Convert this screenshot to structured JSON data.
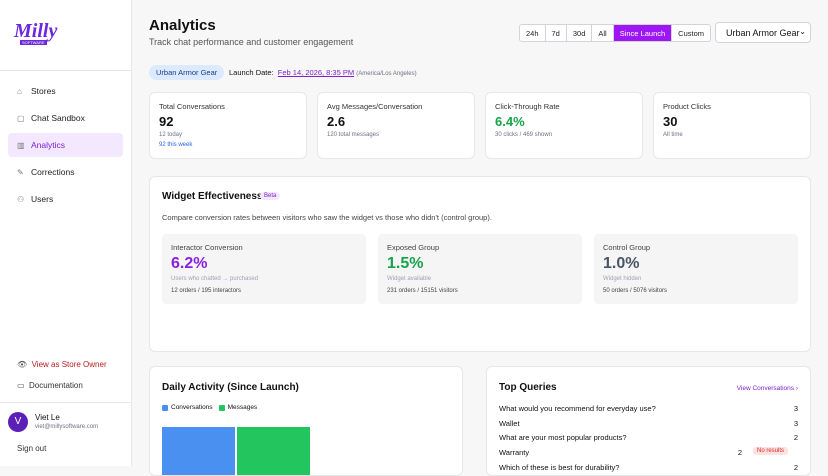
{
  "sidebar": {
    "logo": "Milly",
    "logo_sub": "SOFTWARE",
    "nav": [
      "Stores",
      "Chat Sandbox",
      "Analytics",
      "Corrections",
      "Users"
    ],
    "active": "Analytics",
    "owner_link": "View as Store Owner",
    "docs": "Documentation",
    "user": {
      "initial": "V",
      "name": "Viet Le",
      "email": "viet@millysoftware.com"
    },
    "sign_out": "Sign out"
  },
  "header": {
    "title": "Analytics",
    "subtitle": "Track chat performance and customer engagement",
    "ranges": [
      "24h",
      "7d",
      "30d",
      "All",
      "Since Launch",
      "Custom"
    ],
    "active_range": "Since Launch",
    "store_select": "Urban Armor Gear"
  },
  "launch": {
    "store": "Urban Armor Gear",
    "label": "Launch Date:",
    "date": "Feb 14, 2026, 8:35 PM",
    "tz": "(America/Los Angeles)"
  },
  "stats": [
    {
      "label": "Total Conversations",
      "value": "92",
      "sub": [
        "12 today",
        "92 this week"
      ]
    },
    {
      "label": "Avg Messages/Conversation",
      "value": "2.6",
      "sub": [
        "120 total messages"
      ]
    },
    {
      "label": "Click-Through Rate",
      "value": "6.4%",
      "sub": [
        "30 clicks / 469 shown"
      ]
    },
    {
      "label": "Product Clicks",
      "value": "30",
      "sub": [
        "All time"
      ]
    }
  ],
  "widget": {
    "title": "Widget Effectiveness",
    "badge": "Beta",
    "description": "Compare conversion rates between visitors who saw the widget vs those who didn't (control group).",
    "groups": [
      {
        "label": "Interactor Conversion",
        "value": "6.2%",
        "note": "Users who chatted → purchased",
        "detail": "12 orders / 195 interactors",
        "color": "#8b1fe0"
      },
      {
        "label": "Exposed Group",
        "value": "1.5%",
        "note": "Widget available",
        "detail": "231 orders / 15151 visitors",
        "color": "#16a34a"
      },
      {
        "label": "Control Group",
        "value": "1.0%",
        "note": "Widget hidden",
        "detail": "50 orders / 5076 visitors",
        "color": "#4b5563"
      }
    ]
  },
  "daily": {
    "title": "Daily Activity (Since Launch)",
    "legend": [
      {
        "name": "Conversations",
        "color": "#4a90f0"
      },
      {
        "name": "Messages",
        "color": "#22c55e"
      }
    ]
  },
  "queries": {
    "title": "Top Queries",
    "link": "View Conversations",
    "rows": [
      {
        "q": "What would you recommend for everyday use?",
        "n": "3"
      },
      {
        "q": "Wallet",
        "n": "3"
      },
      {
        "q": "What are your most popular products?",
        "n": "2"
      },
      {
        "q": "Warranty",
        "n": "2",
        "badge": "No results"
      },
      {
        "q": "Which of these is best for durability?",
        "n": "2"
      }
    ]
  }
}
